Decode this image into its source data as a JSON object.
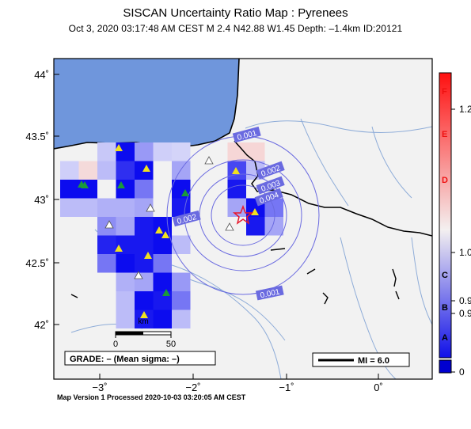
{
  "title": "SISCAN Uncertainty Ratio Map : Pyrenees",
  "subtitle": "Oct  3, 2020 03:17:48 AM CEST   M 2.4   N42.88 W1.45   Depth: –1.4km   ID:20121",
  "footer": "Map Version 1 Processed 2020-10-03 03:20:05 AM CEST",
  "map": {
    "lat_labels": [
      "44˚",
      "43.5˚",
      "43˚",
      "42.5˚",
      "42˚"
    ],
    "lon_labels": [
      "−3˚",
      "−2˚",
      "−1˚",
      "0˚"
    ],
    "contour_labels": [
      "0.001",
      "0.002",
      "0.003",
      "0.004",
      "0.002",
      "0.001"
    ],
    "scale_labels": [
      "0",
      "50"
    ],
    "scale_unit": "km",
    "grade_box": "GRADE: – (Mean sigma: –)",
    "mi_box": "MI = 6.0",
    "colors": {
      "sea": "#6f96dc",
      "land": "#f2f2f2",
      "cell_strong": "#0000ee",
      "epicenter": "#e8182c",
      "station_yellow": "#f0e020",
      "station_green": "#1a9a3a"
    }
  },
  "colorbar": {
    "grade_letters": [
      "F",
      "E",
      "D",
      "C",
      "B",
      "A"
    ],
    "values": [
      "1.2",
      "1.0",
      "0.9",
      "0.9",
      "0"
    ]
  }
}
